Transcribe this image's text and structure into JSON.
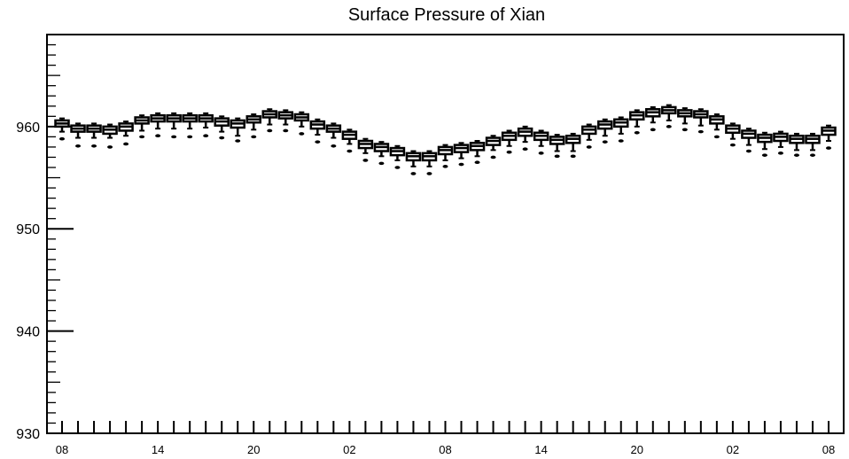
{
  "chart_data": {
    "type": "box",
    "title": "Surface Pressure of Xian",
    "xlabel": "",
    "ylabel": "",
    "ylim": [
      930,
      969
    ],
    "yticks": [
      930,
      940,
      950,
      960
    ],
    "x_tick_labels": [
      "08",
      "14",
      "20",
      "02",
      "08",
      "14",
      "20",
      "02",
      "08"
    ],
    "x_tick_label_indices": [
      0,
      6,
      12,
      18,
      24,
      30,
      36,
      42,
      48
    ],
    "n_boxes": 49,
    "series": [
      {
        "medians": [
          960.3,
          959.8,
          959.8,
          959.7,
          960.0,
          960.6,
          960.8,
          960.8,
          960.8,
          960.8,
          960.5,
          960.3,
          960.7,
          961.2,
          961.1,
          960.9,
          960.2,
          959.8,
          959.2,
          958.3,
          958.0,
          957.6,
          957.1,
          957.1,
          957.7,
          957.9,
          958.1,
          958.6,
          959.1,
          959.5,
          959.1,
          958.7,
          958.8,
          959.7,
          960.2,
          960.4,
          961.1,
          961.4,
          961.6,
          961.3,
          961.2,
          960.7,
          959.8,
          959.3,
          958.9,
          959.0,
          958.8,
          958.8,
          959.6
        ],
        "q1": [
          960.0,
          959.5,
          959.5,
          959.3,
          959.6,
          960.3,
          960.5,
          960.5,
          960.5,
          960.5,
          960.1,
          959.9,
          960.4,
          960.9,
          960.8,
          960.6,
          959.8,
          959.5,
          958.8,
          957.9,
          957.6,
          957.2,
          956.7,
          956.7,
          957.3,
          957.5,
          957.7,
          958.2,
          958.7,
          959.1,
          958.7,
          958.3,
          958.4,
          959.3,
          959.8,
          960.0,
          960.7,
          961.0,
          961.3,
          961.0,
          960.9,
          960.3,
          959.4,
          958.9,
          958.5,
          958.6,
          958.4,
          958.4,
          959.2
        ],
        "q3": [
          960.6,
          960.1,
          960.1,
          960.0,
          960.3,
          960.9,
          961.1,
          961.1,
          961.1,
          961.1,
          960.8,
          960.6,
          961.0,
          961.5,
          961.4,
          961.2,
          960.5,
          960.1,
          959.5,
          958.6,
          958.3,
          957.9,
          957.4,
          957.4,
          958.0,
          958.2,
          958.4,
          958.9,
          959.4,
          959.8,
          959.4,
          959.0,
          959.1,
          960.0,
          960.5,
          960.7,
          961.4,
          961.7,
          961.9,
          961.6,
          961.5,
          961.0,
          960.1,
          959.6,
          959.2,
          959.3,
          959.1,
          959.1,
          959.9
        ],
        "whisker_low": [
          959.5,
          958.9,
          958.9,
          958.9,
          959.1,
          959.6,
          959.8,
          959.8,
          959.8,
          959.9,
          959.5,
          959.1,
          959.7,
          960.2,
          960.2,
          960.0,
          959.2,
          958.9,
          958.3,
          957.4,
          957.1,
          956.7,
          956.1,
          956.1,
          956.7,
          956.9,
          957.1,
          957.7,
          958.1,
          958.5,
          958.1,
          957.6,
          957.6,
          958.7,
          959.1,
          959.3,
          960.0,
          960.4,
          960.6,
          960.3,
          960.1,
          959.7,
          958.8,
          958.2,
          957.8,
          958.0,
          957.7,
          957.7,
          958.6
        ],
        "whisker_high": [
          960.8,
          960.3,
          960.3,
          960.2,
          960.5,
          961.1,
          961.3,
          961.3,
          961.3,
          961.3,
          961.0,
          960.8,
          961.2,
          961.7,
          961.6,
          961.4,
          960.7,
          960.3,
          959.7,
          958.8,
          958.5,
          958.1,
          957.6,
          957.6,
          958.2,
          958.4,
          958.6,
          959.1,
          959.6,
          960.0,
          959.6,
          959.2,
          959.3,
          960.2,
          960.7,
          960.9,
          961.6,
          961.9,
          962.1,
          961.8,
          961.7,
          961.2,
          960.3,
          959.8,
          959.4,
          959.5,
          959.3,
          959.3,
          960.1
        ],
        "outliers": [
          958.8,
          958.1,
          958.1,
          958.0,
          958.3,
          959.0,
          959.1,
          959.0,
          959.0,
          959.1,
          958.9,
          958.6,
          959.0,
          959.6,
          959.6,
          959.3,
          958.5,
          958.1,
          957.6,
          956.7,
          956.4,
          956.0,
          955.4,
          955.4,
          956.1,
          956.3,
          956.5,
          957.0,
          957.5,
          957.8,
          957.4,
          957.1,
          957.1,
          958.0,
          958.5,
          958.6,
          959.4,
          959.7,
          960.0,
          959.7,
          959.5,
          959.0,
          958.2,
          957.6,
          957.2,
          957.4,
          957.2,
          957.2,
          957.9
        ]
      }
    ],
    "grid": false,
    "legend": "none"
  }
}
